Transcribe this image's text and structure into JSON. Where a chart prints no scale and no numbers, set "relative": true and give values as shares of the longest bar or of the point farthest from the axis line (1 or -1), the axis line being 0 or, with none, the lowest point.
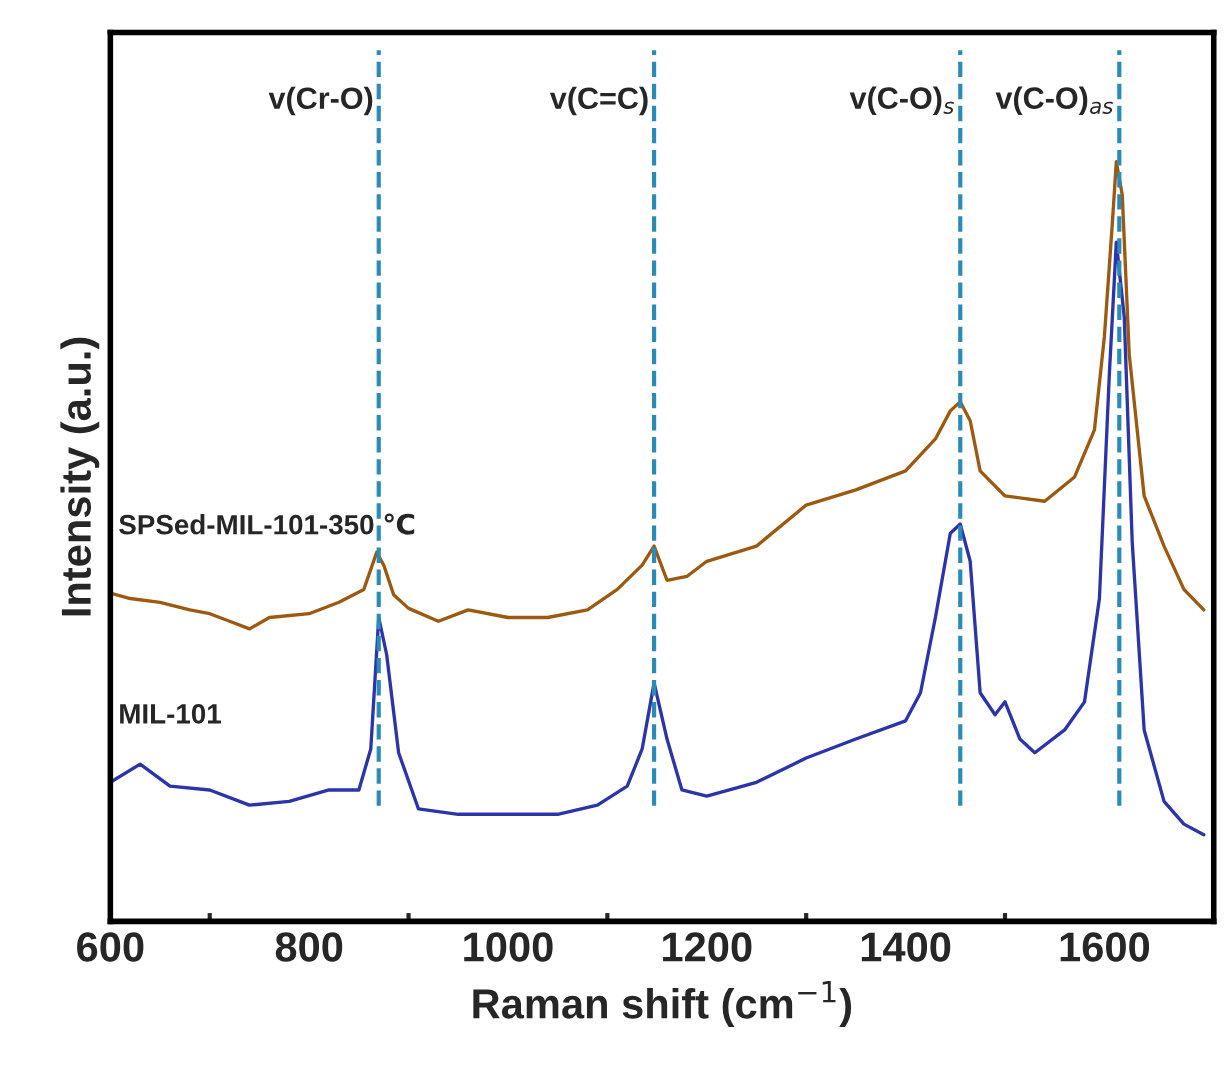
{
  "chart_data": {
    "type": "line",
    "relative": true,
    "xlabel": "Raman shift (cm$^{−1}$)",
    "ylabel": "Intensity (a.u.)",
    "xlim": [
      600,
      1710
    ],
    "xticks": [
      600,
      {
        "value": 700,
        "label": null
      },
      800,
      {
        "value": 900,
        "label": null
      },
      1000,
      {
        "value": 1100,
        "label": null
      },
      1200,
      {
        "value": 1300,
        "label": null
      },
      1400,
      {
        "value": 1500,
        "label": null
      },
      1600
    ],
    "grid": false,
    "legend": false,
    "series": [
      {
        "name": "SPSed-MIL-101-350 ℃",
        "color": "#9b5a10",
        "x": [
          600,
          620,
          650,
          680,
          700,
          720,
          740,
          760,
          800,
          830,
          855,
          868,
          875,
          885,
          900,
          930,
          960,
          1000,
          1040,
          1080,
          1110,
          1135,
          1147,
          1160,
          1180,
          1200,
          1250,
          1300,
          1350,
          1400,
          1430,
          1445,
          1455,
          1465,
          1475,
          1500,
          1540,
          1570,
          1590,
          1600,
          1608,
          1612,
          1618,
          1625,
          1640,
          1660,
          1680,
          1700
        ],
        "values": [
          0.432,
          0.425,
          0.42,
          0.41,
          0.405,
          0.395,
          0.385,
          0.4,
          0.405,
          0.42,
          0.437,
          0.486,
          0.469,
          0.43,
          0.412,
          0.395,
          0.41,
          0.4,
          0.4,
          0.41,
          0.437,
          0.469,
          0.494,
          0.449,
          0.454,
          0.474,
          0.494,
          0.548,
          0.568,
          0.593,
          0.635,
          0.672,
          0.684,
          0.659,
          0.593,
          0.56,
          0.553,
          0.585,
          0.647,
          0.77,
          0.919,
          1,
          0.956,
          0.746,
          0.56,
          0.494,
          0.437,
          0.41
        ]
      },
      {
        "name": "MIL-101",
        "color": "#2b35a8",
        "x": [
          600,
          630,
          660,
          700,
          740,
          780,
          820,
          850,
          862,
          870,
          878,
          890,
          910,
          950,
          1000,
          1050,
          1090,
          1120,
          1135,
          1147,
          1160,
          1175,
          1200,
          1250,
          1300,
          1350,
          1400,
          1415,
          1430,
          1445,
          1455,
          1465,
          1475,
          1490,
          1500,
          1515,
          1530,
          1560,
          1580,
          1595,
          1605,
          1612,
          1620,
          1628,
          1640,
          1660,
          1680,
          1700
        ],
        "values": [
          0.183,
          0.207,
          0.178,
          0.173,
          0.153,
          0.158,
          0.173,
          0.173,
          0.227,
          0.4,
          0.351,
          0.222,
          0.148,
          0.141,
          0.141,
          0.141,
          0.153,
          0.178,
          0.227,
          0.314,
          0.24,
          0.173,
          0.165,
          0.183,
          0.215,
          0.24,
          0.264,
          0.301,
          0.4,
          0.511,
          0.523,
          0.474,
          0.301,
          0.272,
          0.289,
          0.24,
          0.222,
          0.252,
          0.289,
          0.425,
          0.721,
          0.894,
          0.795,
          0.499,
          0.252,
          0.158,
          0.128,
          0.114
        ]
      }
    ],
    "ref_lines": [
      {
        "axis": "x",
        "value": 870,
        "label": "v(Cr-O)",
        "color": "#2a8ab8",
        "line_style": "dashed"
      },
      {
        "axis": "x",
        "value": 1147,
        "label": "v(C=C)",
        "color": "#2a8ab8",
        "line_style": "dashed"
      },
      {
        "axis": "x",
        "value": 1455,
        "label": "v(C-O)$_{s}$",
        "color": "#2a8ab8",
        "line_style": "dashed"
      },
      {
        "axis": "x",
        "value": 1615,
        "label": "v(C-O)$_{as}$",
        "color": "#2a8ab8",
        "line_style": "dashed"
      }
    ]
  }
}
